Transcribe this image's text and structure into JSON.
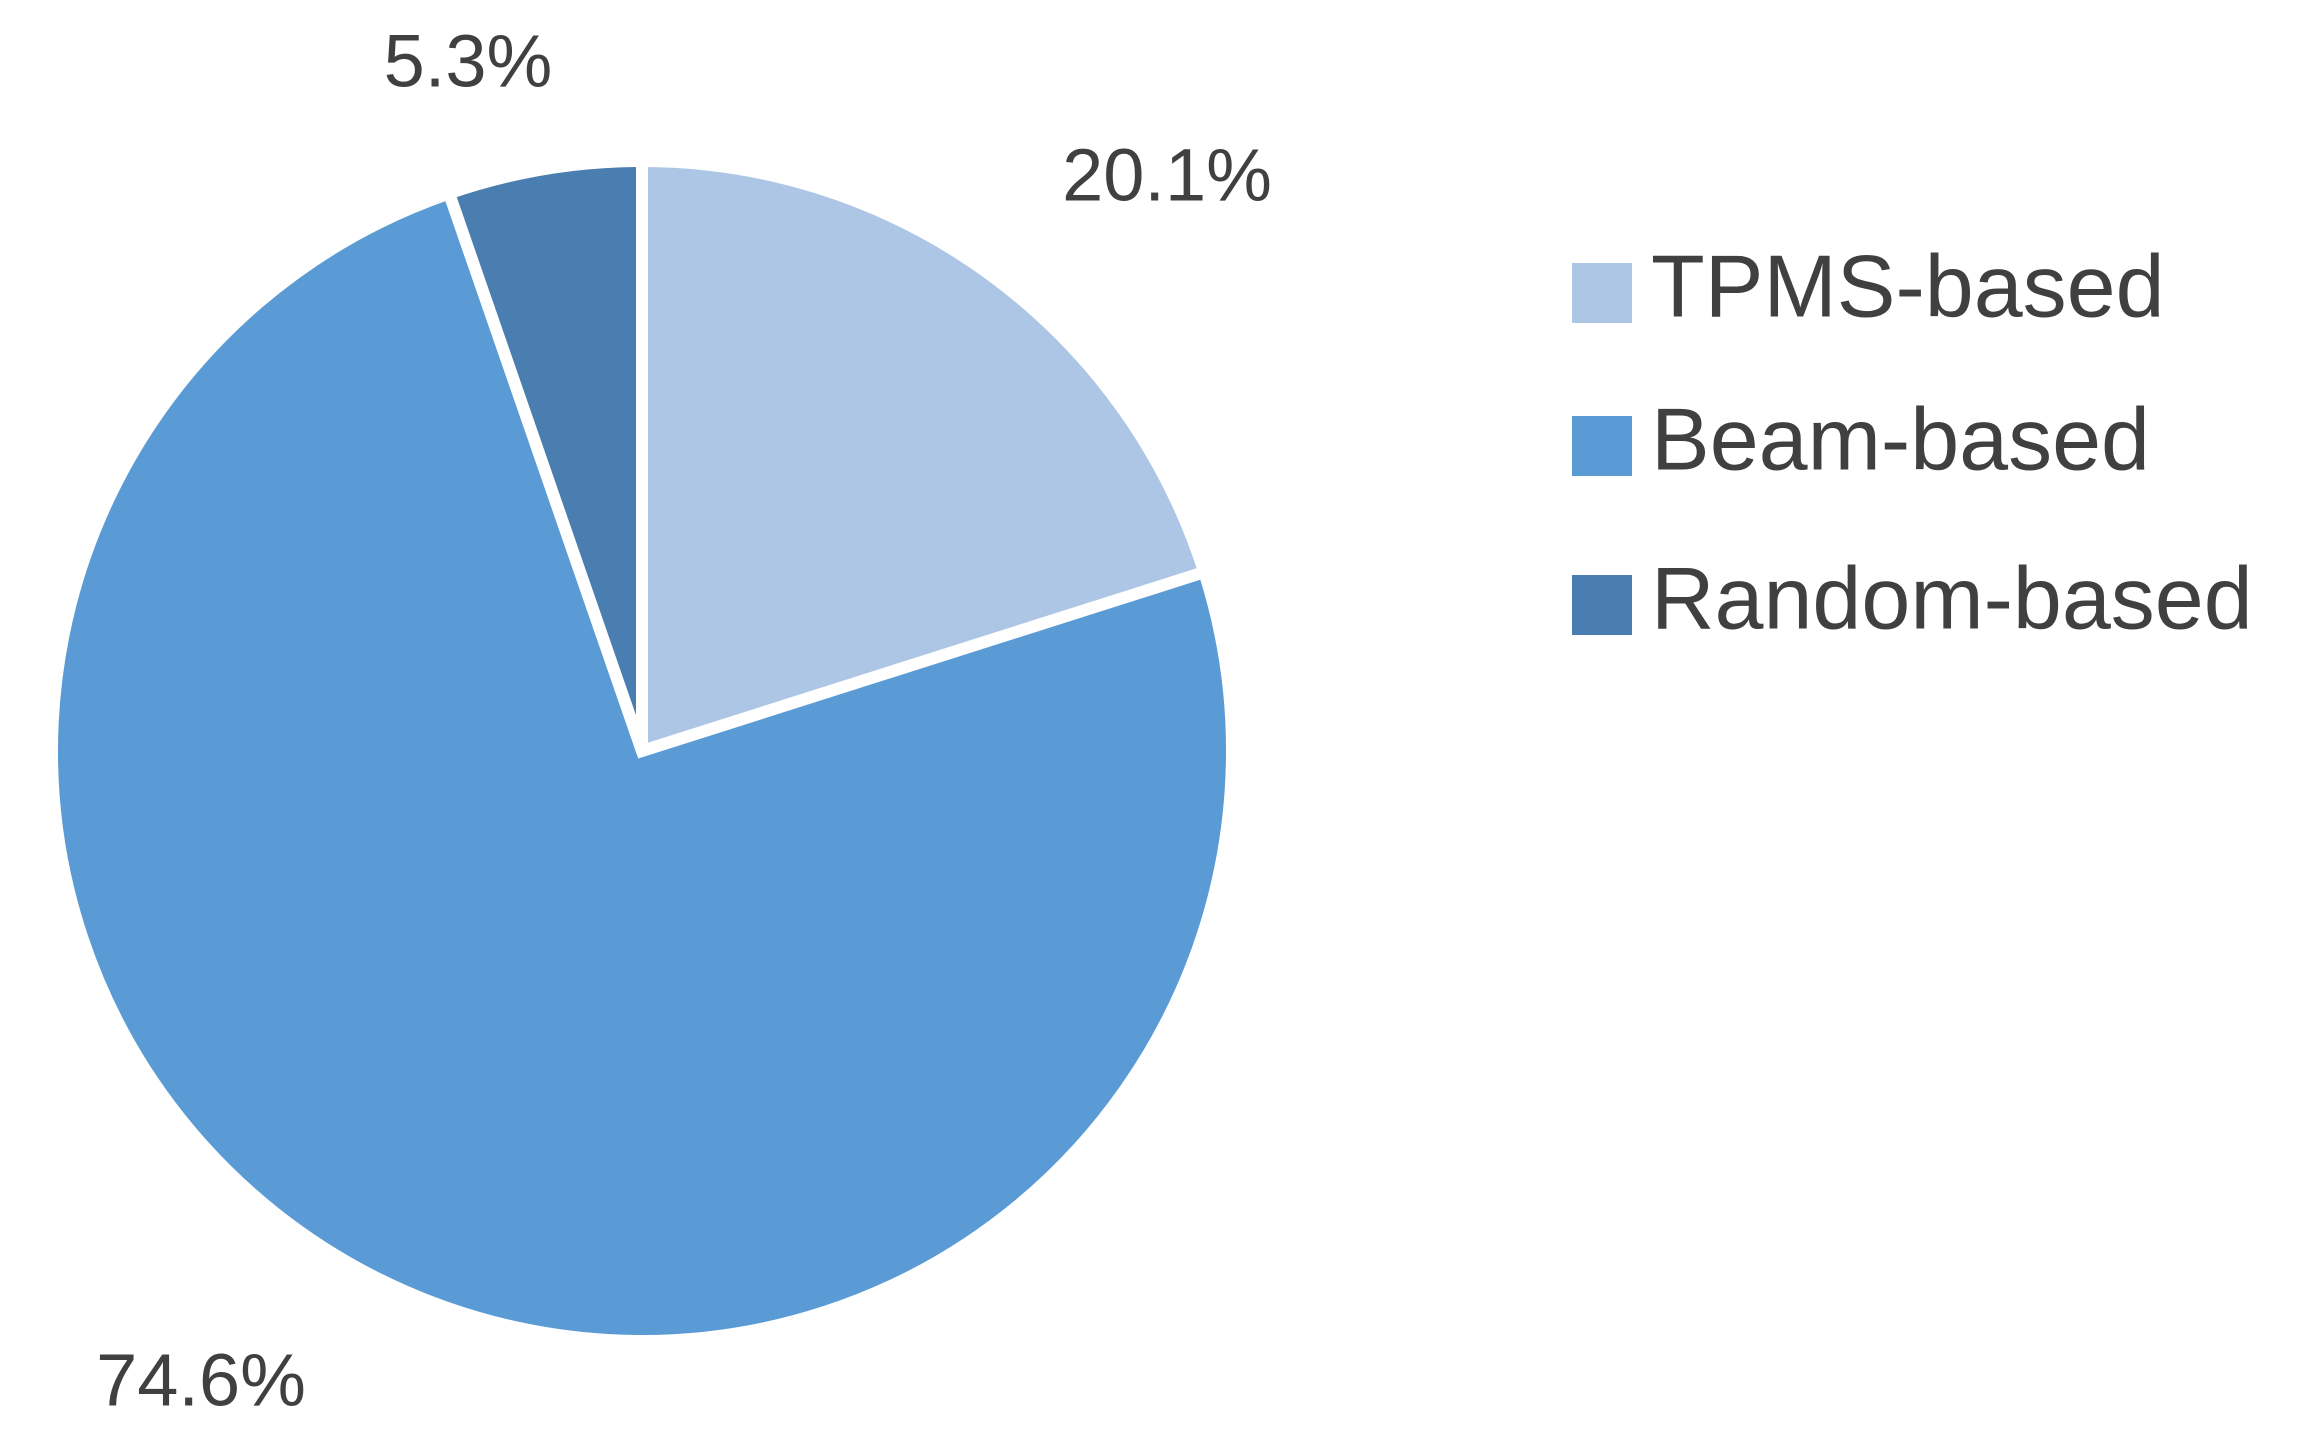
{
  "chart_data": {
    "type": "pie",
    "categories": [
      "TPMS-based",
      "Beam-based",
      "Random-based"
    ],
    "values": [
      20.1,
      74.6,
      5.3
    ],
    "value_labels": [
      "20.1%",
      "74.6%",
      "5.3%"
    ],
    "colors": [
      "#adc6e5",
      "#5b9bd5",
      "#4a7eb0"
    ]
  }
}
